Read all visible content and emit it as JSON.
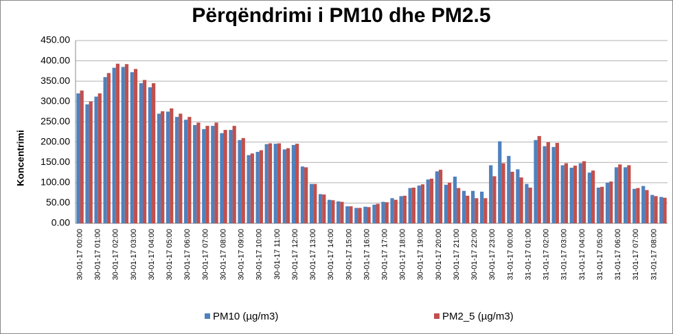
{
  "chart_data": {
    "type": "bar",
    "title": "Përqëndrimi i PM10 dhe PM2.5",
    "y_label": "Koncentrimi",
    "categories": [
      "30-01-17 00:00",
      null,
      "30-01-17 01:00",
      null,
      "30-01-17 02:00",
      null,
      "30-01-17 03:00",
      null,
      "30-01-17 04:00",
      null,
      "30-01-17 05:00",
      null,
      "30-01-17 06:00",
      null,
      "30-01-17 07:00",
      null,
      "30-01-17 08:00",
      null,
      "30-01-17 09:00",
      null,
      "30-01-17 10:00",
      null,
      "30-01-17 11:00",
      null,
      "30-01-17 12:00",
      null,
      "30-01-17 13:00",
      null,
      "30-01-17 14:00",
      null,
      "30-01-17 15:00",
      null,
      "30-01-17 16:00",
      null,
      "30-01-17 17:00",
      null,
      "30-01-17 18:00",
      null,
      "30-01-17 19:00",
      null,
      "30-01-17 20:00",
      null,
      "30-01-17 21:00",
      null,
      "30-01-17 22:00",
      null,
      "30-01-17 23:00",
      null,
      "31-01-17 00:00",
      null,
      "31-01-17 01:00",
      null,
      "31-01-17 02:00",
      null,
      "31-01-17 03:00",
      null,
      "31-01-17 04:00",
      null,
      "31-01-17 05:00",
      null,
      "31-01-17 06:00",
      null,
      "31-01-17 07:00",
      null,
      "31-01-17 08:00",
      null
    ],
    "series": [
      {
        "name": "PM10 (µg/m3)",
        "color": "#4f81bd",
        "values": [
          320,
          293,
          312,
          360,
          383,
          385,
          372,
          345,
          335,
          270,
          275,
          262,
          255,
          242,
          232,
          240,
          222,
          230,
          205,
          168,
          176,
          195,
          196,
          182,
          193,
          140,
          97,
          72,
          58,
          54,
          42,
          38,
          41,
          46,
          53,
          62,
          67,
          87,
          93,
          108,
          128,
          95,
          115,
          80,
          80,
          78,
          143,
          202,
          166,
          133,
          97,
          205,
          190,
          188,
          143,
          137,
          148,
          125,
          88,
          100,
          138,
          138,
          85,
          92,
          70,
          65
        ]
      },
      {
        "name": "PM2_5 (µg/m3)",
        "color": "#c0504d",
        "values": [
          327,
          300,
          320,
          370,
          393,
          392,
          380,
          353,
          345,
          276,
          283,
          270,
          262,
          248,
          240,
          248,
          230,
          240,
          210,
          172,
          180,
          197,
          197,
          185,
          196,
          138,
          97,
          71,
          57,
          53,
          42,
          38,
          40,
          48,
          52,
          58,
          68,
          88,
          96,
          110,
          132,
          100,
          87,
          68,
          62,
          62,
          116,
          148,
          127,
          113,
          88,
          215,
          200,
          198,
          148,
          142,
          153,
          130,
          90,
          103,
          145,
          143,
          87,
          82,
          67,
          63
        ]
      }
    ],
    "ylim": [
      0,
      450
    ],
    "yticks": [
      {
        "value": 0,
        "label": "0.00"
      },
      {
        "value": 50,
        "label": "50.00"
      },
      {
        "value": 100,
        "label": "100.00"
      },
      {
        "value": 150,
        "label": "150.00"
      },
      {
        "value": 200,
        "label": "200.00"
      },
      {
        "value": 250,
        "label": "250.00"
      },
      {
        "value": 300,
        "label": "300.00"
      },
      {
        "value": 350,
        "label": "350.00"
      },
      {
        "value": 400,
        "label": "400.00"
      },
      {
        "value": 450,
        "label": "450.00"
      }
    ],
    "grid": true,
    "legend": "bottom"
  }
}
